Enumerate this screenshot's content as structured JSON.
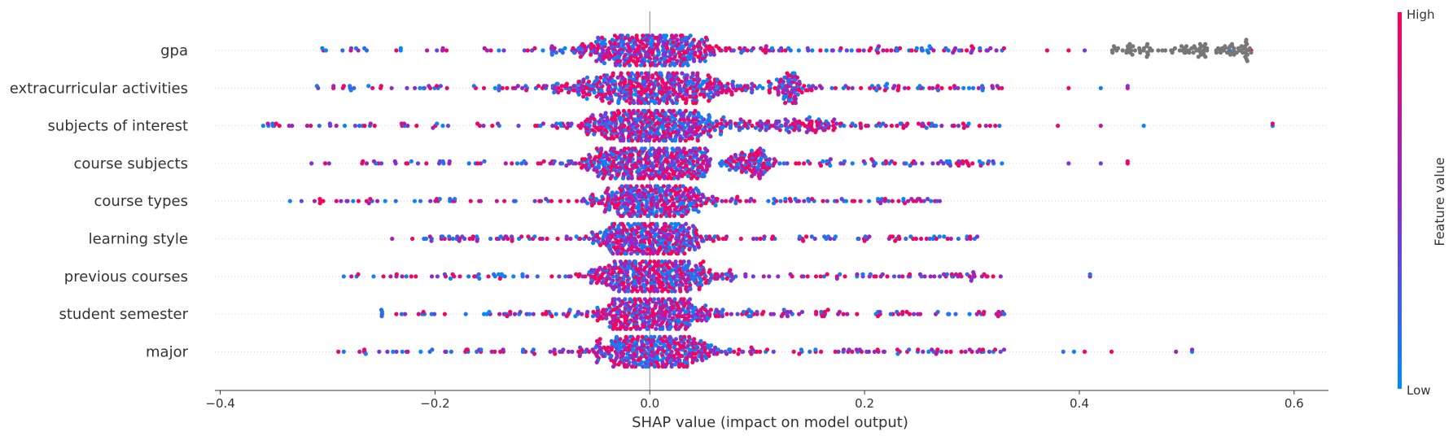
{
  "chart_data": {
    "type": "scatter",
    "subtype": "shap-beeswarm",
    "xlabel": "SHAP value (impact on model output)",
    "xlim": [
      -0.405,
      0.632
    ],
    "xticks": [
      -0.4,
      -0.2,
      0.0,
      0.2,
      0.4,
      0.6
    ],
    "xtick_labels": [
      "−0.4",
      "−0.2",
      "0.0",
      "0.2",
      "0.4",
      "0.6"
    ],
    "features": [
      "gpa",
      "extracurricular activities",
      "subjects of interest",
      "course subjects",
      "course types",
      "learning style",
      "previous courses",
      "student semester",
      "major"
    ],
    "feature_stats": [
      {
        "name": "gpa",
        "min": -0.305,
        "max": 0.56,
        "core_spread": 0.07,
        "bulge": [],
        "outliers_high": [
          0.37,
          0.39,
          0.405,
          0.54
        ],
        "gray_cluster": [
          0.43,
          0.56
        ]
      },
      {
        "name": "extracurricular activities",
        "min": -0.31,
        "max": 0.445,
        "core_spread": 0.09,
        "bulge": [
          0.13,
          0.015
        ],
        "outliers_high": [
          0.39,
          0.42,
          0.445
        ]
      },
      {
        "name": "subjects of interest",
        "min": -0.36,
        "max": 0.58,
        "core_spread": 0.07,
        "bulge": [
          0.14,
          0.06
        ],
        "outliers_high": [
          0.38,
          0.42,
          0.46,
          0.58
        ]
      },
      {
        "name": "course subjects",
        "min": -0.315,
        "max": 0.445,
        "core_spread": 0.07,
        "bulge": [
          0.1,
          0.02
        ],
        "outliers_high": [
          0.39,
          0.42,
          0.445
        ]
      },
      {
        "name": "course types",
        "min": -0.335,
        "max": 0.27,
        "core_spread": 0.05,
        "bulge": [],
        "outliers_high": []
      },
      {
        "name": "learning style",
        "min": -0.24,
        "max": 0.305,
        "core_spread": 0.05,
        "bulge": [],
        "outliers_high": []
      },
      {
        "name": "previous courses",
        "min": -0.285,
        "max": 0.41,
        "core_spread": 0.06,
        "bulge": [],
        "outliers_high": [
          0.41
        ]
      },
      {
        "name": "student semester",
        "min": -0.25,
        "max": 0.33,
        "core_spread": 0.055,
        "bulge": [],
        "outliers_high": []
      },
      {
        "name": "major",
        "min": -0.29,
        "max": 0.505,
        "core_spread": 0.06,
        "bulge": [],
        "outliers_high": [
          0.385,
          0.395,
          0.405,
          0.43,
          0.49,
          0.505
        ]
      }
    ],
    "colorbar": {
      "label": "Feature value",
      "high_label": "High",
      "low_label": "Low",
      "color_high": "#ff0052",
      "color_mid": "#8a2bd1",
      "color_low": "#008bfb"
    },
    "missing_color": "#777777",
    "zero_line": 0.0,
    "grid": false,
    "row_guides": "dotted"
  }
}
